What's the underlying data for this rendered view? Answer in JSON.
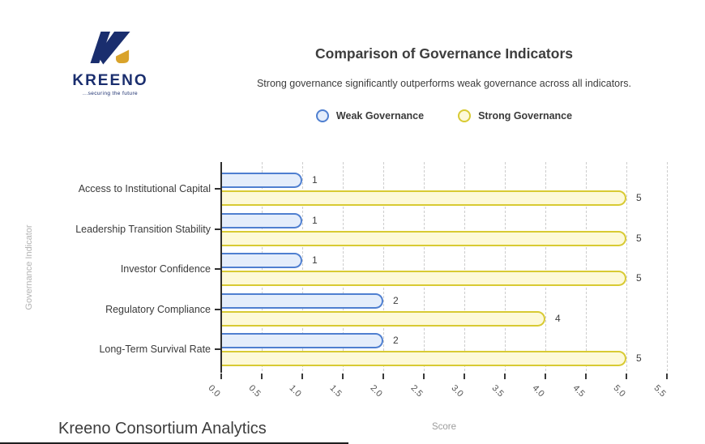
{
  "logo": {
    "brand": "KREENO",
    "tagline": "...securing the future",
    "navy": "#1a2e6e",
    "gold": "#d9a32b"
  },
  "header": {
    "title": "Comparison of Governance Indicators",
    "subtitle": "Strong governance significantly outperforms weak governance across all indicators."
  },
  "chart_data": {
    "type": "bar",
    "orientation": "horizontal",
    "title": "Comparison of Governance Indicators",
    "categories": [
      "Access to Institutional Capital",
      "Leadership Transition Stability",
      "Investor Confidence",
      "Regulatory Compliance",
      "Long-Term Survival Rate"
    ],
    "series": [
      {
        "name": "Weak Governance",
        "values": [
          1,
          1,
          1,
          2,
          2
        ],
        "stroke": "#4f7fd0",
        "fill": "#e4edfb"
      },
      {
        "name": "Strong Governance",
        "values": [
          5,
          5,
          5,
          4,
          5
        ],
        "stroke": "#d8ca33",
        "fill": "#fdf9d8"
      }
    ],
    "xlabel": "Score",
    "ylabel": "Governance Indicator",
    "xlim": [
      0,
      5.5
    ],
    "xticks": [
      "0.0",
      "0.5",
      "1.0",
      "1.5",
      "2.0",
      "2.5",
      "3.0",
      "3.5",
      "4.0",
      "4.5",
      "5.0",
      "5.5"
    ],
    "grid": "dashed-vertical",
    "legend_position": "top-center"
  },
  "footer": {
    "caption": "Kreeno Consortium Analytics"
  }
}
